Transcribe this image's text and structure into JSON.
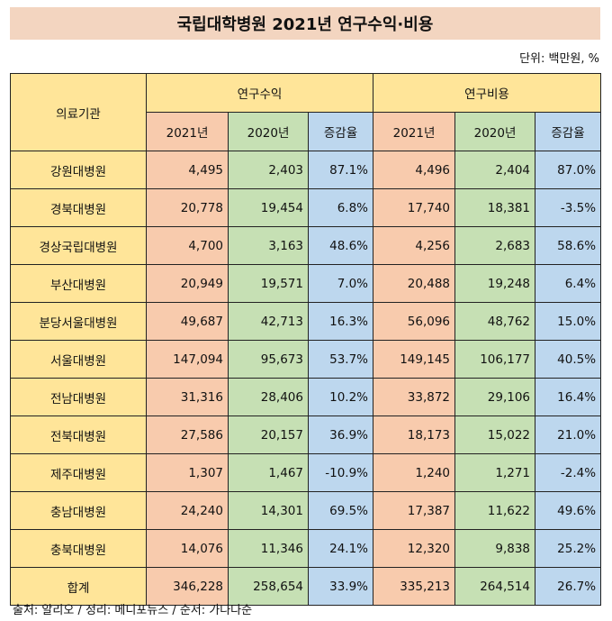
{
  "title": "국립대학병원 2021년 연구수익·비용",
  "unit": "단위: 백만원, %",
  "header": {
    "institution": "의료기관",
    "revenue": "연구수익",
    "cost": "연구비용",
    "y2021": "2021년",
    "y2020": "2020년",
    "rate": "증감율"
  },
  "rows": [
    {
      "name": "강원대병원",
      "rev21": "4,495",
      "rev20": "2,403",
      "revRate": "87.1%",
      "cost21": "4,496",
      "cost20": "2,404",
      "costRate": "87.0%"
    },
    {
      "name": "경북대병원",
      "rev21": "20,778",
      "rev20": "19,454",
      "revRate": "6.8%",
      "cost21": "17,740",
      "cost20": "18,381",
      "costRate": "-3.5%"
    },
    {
      "name": "경상국립대병원",
      "rev21": "4,700",
      "rev20": "3,163",
      "revRate": "48.6%",
      "cost21": "4,256",
      "cost20": "2,683",
      "costRate": "58.6%"
    },
    {
      "name": "부산대병원",
      "rev21": "20,949",
      "rev20": "19,571",
      "revRate": "7.0%",
      "cost21": "20,488",
      "cost20": "19,248",
      "costRate": "6.4%"
    },
    {
      "name": "분당서울대병원",
      "rev21": "49,687",
      "rev20": "42,713",
      "revRate": "16.3%",
      "cost21": "56,096",
      "cost20": "48,762",
      "costRate": "15.0%"
    },
    {
      "name": "서울대병원",
      "rev21": "147,094",
      "rev20": "95,673",
      "revRate": "53.7%",
      "cost21": "149,145",
      "cost20": "106,177",
      "costRate": "40.5%"
    },
    {
      "name": "전남대병원",
      "rev21": "31,316",
      "rev20": "28,406",
      "revRate": "10.2%",
      "cost21": "33,872",
      "cost20": "29,106",
      "costRate": "16.4%"
    },
    {
      "name": "전북대병원",
      "rev21": "27,586",
      "rev20": "20,157",
      "revRate": "36.9%",
      "cost21": "18,173",
      "cost20": "15,022",
      "costRate": "21.0%"
    },
    {
      "name": "제주대병원",
      "rev21": "1,307",
      "rev20": "1,467",
      "revRate": "-10.9%",
      "cost21": "1,240",
      "cost20": "1,271",
      "costRate": "-2.4%"
    },
    {
      "name": "충남대병원",
      "rev21": "24,240",
      "rev20": "14,301",
      "revRate": "69.5%",
      "cost21": "17,387",
      "cost20": "11,622",
      "costRate": "49.6%"
    },
    {
      "name": "충북대병원",
      "rev21": "14,076",
      "rev20": "11,346",
      "revRate": "24.1%",
      "cost21": "12,320",
      "cost20": "9,838",
      "costRate": "25.2%"
    },
    {
      "name": "합계",
      "rev21": "346,228",
      "rev20": "258,654",
      "revRate": "33.9%",
      "cost21": "335,213",
      "cost20": "264,514",
      "costRate": "26.7%"
    }
  ],
  "source": "출처: 알리오 / 정리: 메디포뉴스 / 순서: 가나다순"
}
